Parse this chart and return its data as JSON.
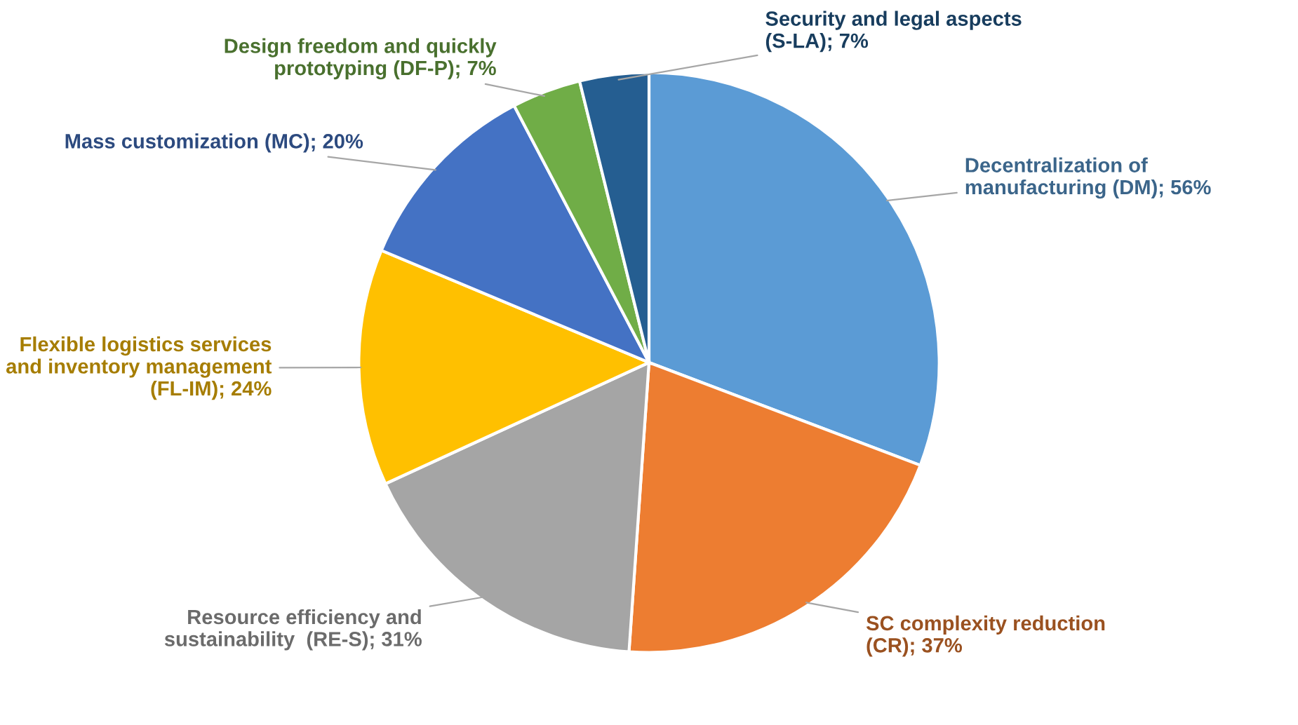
{
  "chart_data": {
    "type": "pie",
    "categories": [
      "Decentralization of\nmanufacturing (DM)",
      "SC complexity reduction\n(CR)",
      "Resource efficiency and\nsustainability  (RE-S)",
      "Flexible logistics services\nand inventory management\n(FL-IM)",
      "Mass customization (MC)",
      "Design freedom and quickly\nprototyping (DF-P)",
      "Security and legal aspects\n(S-LA)"
    ],
    "values": [
      56,
      37,
      31,
      24,
      20,
      7,
      7
    ],
    "value_labels": [
      "56%",
      "37%",
      "31%",
      "24%",
      "20%",
      "7%",
      "7%"
    ],
    "colors": [
      "#5b9bd5",
      "#ed7d31",
      "#a5a5a5",
      "#ffc000",
      "#4472c4",
      "#70ad47",
      "#255e91"
    ],
    "legend": false
  }
}
